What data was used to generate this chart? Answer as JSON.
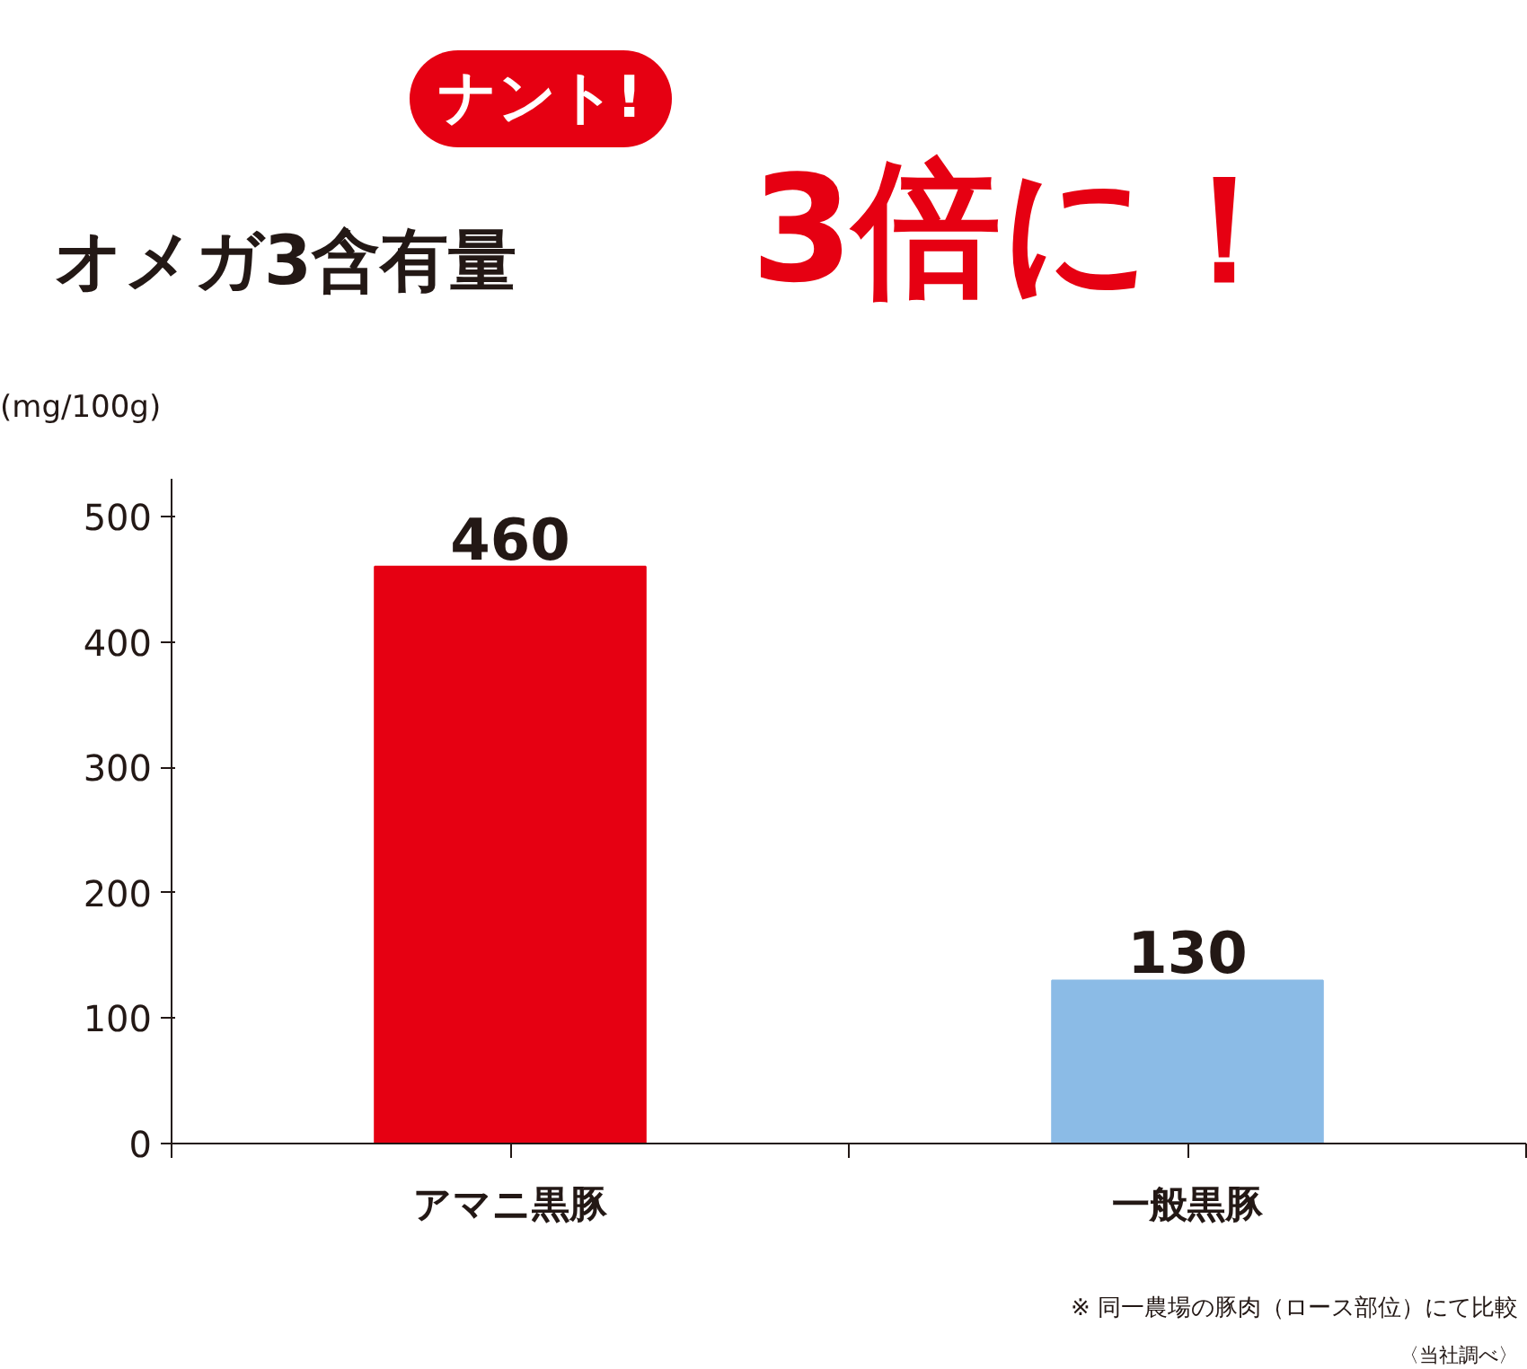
{
  "chart_data": {
    "type": "bar",
    "title": "オメガ3含有量",
    "subtitle": "3倍に！",
    "ylabel": "(mg/100g)",
    "categories": [
      "アマニ黒豚",
      "一般黒豚"
    ],
    "values": [
      460,
      130
    ],
    "colors": [
      "#e60012",
      "#8bbbe6"
    ],
    "ylim": [
      0,
      530
    ],
    "yticks": [
      0,
      100,
      200,
      300,
      400,
      500
    ],
    "grid": false,
    "data_labels": true,
    "annotations": [
      "ナント!",
      "※ 同一農場の豚肉（ロース部位）にて比較",
      "〈当社調べ〉"
    ]
  }
}
